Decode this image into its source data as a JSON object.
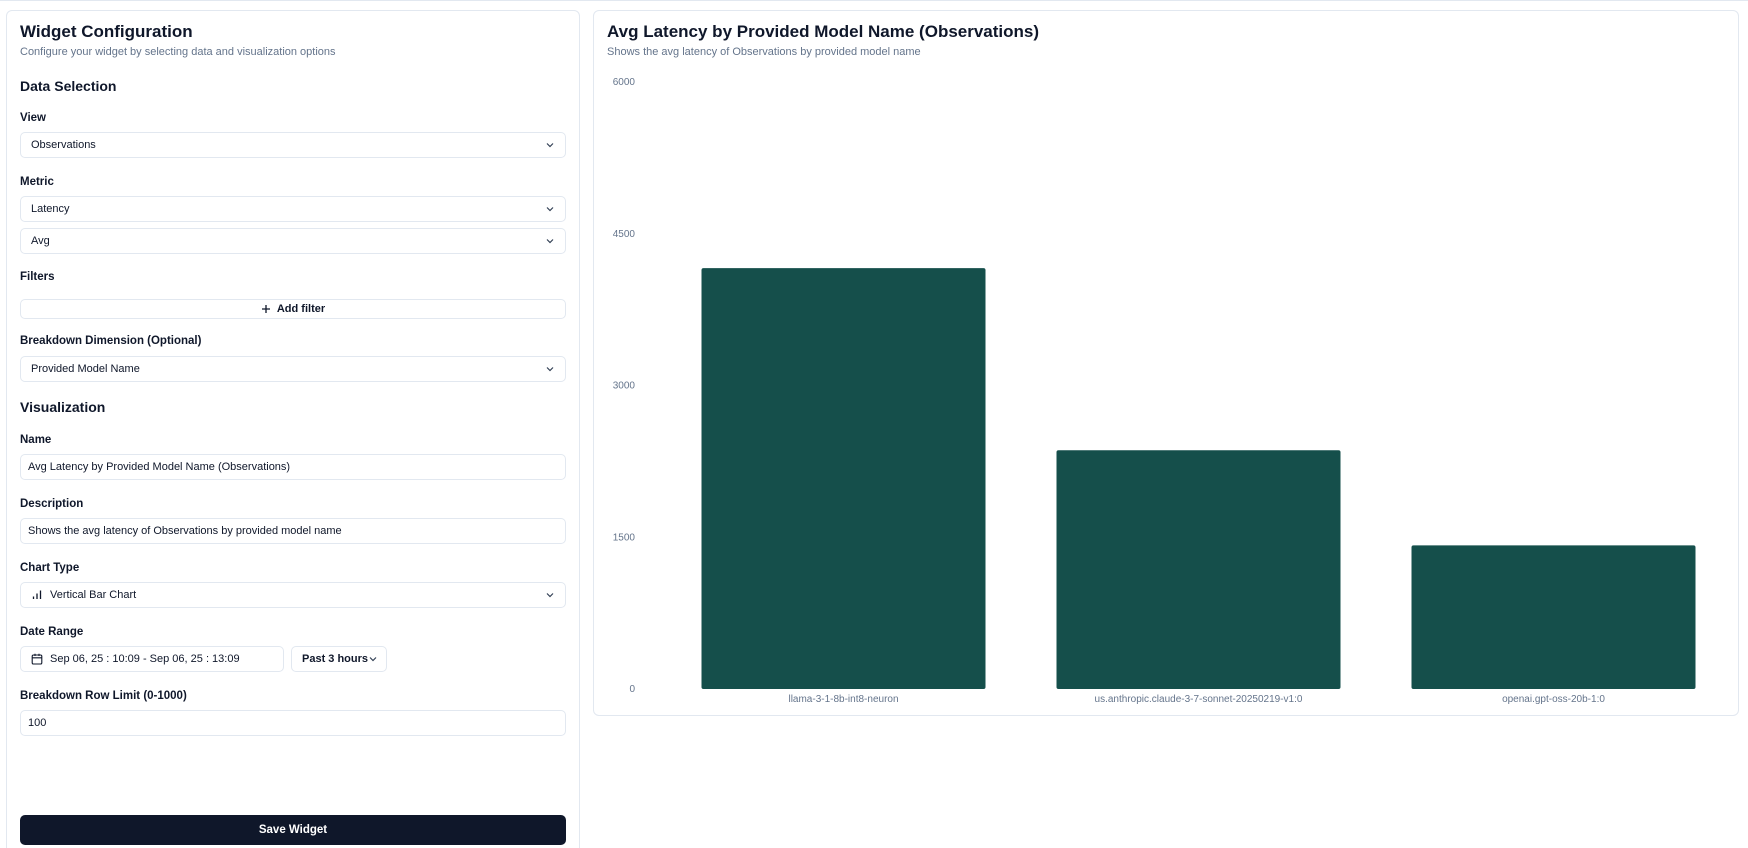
{
  "config": {
    "title": "Widget Configuration",
    "subtitle": "Configure your widget by selecting data and visualization options",
    "data_selection_heading": "Data Selection",
    "view_label": "View",
    "view_value": "Observations",
    "metric_label": "Metric",
    "metric_value": "Latency",
    "aggregation_value": "Avg",
    "filters_label": "Filters",
    "add_filter_label": "Add filter",
    "breakdown_label": "Breakdown Dimension (Optional)",
    "breakdown_value": "Provided Model Name",
    "visualization_heading": "Visualization",
    "name_label": "Name",
    "name_value": "Avg Latency by Provided Model Name (Observations)",
    "description_label": "Description",
    "description_value": "Shows the avg latency of Observations by provided model name",
    "chart_type_label": "Chart Type",
    "chart_type_value": "Vertical Bar Chart",
    "date_range_label": "Date Range",
    "date_range_value": "Sep 06, 25 : 10:09 - Sep 06, 25 : 13:09",
    "date_preset_value": "Past 3 hours",
    "row_limit_label": "Breakdown Row Limit (0-1000)",
    "row_limit_value": "100",
    "save_label": "Save Widget"
  },
  "preview": {
    "title": "Avg Latency by Provided Model Name (Observations)",
    "subtitle": "Shows the avg latency of Observations by provided model name"
  },
  "colors": {
    "bar": "#154f4b",
    "primary_button": "#0f172a",
    "border": "#e2e8f0",
    "muted_text": "#64748b"
  },
  "icons": {
    "select_chevron": "chevron-down-icon",
    "add": "plus-icon",
    "chart_type": "bar-chart-icon",
    "date": "calendar-icon"
  },
  "chart_data": {
    "type": "bar",
    "categories": [
      "llama-3-1-8b-int8-neuron",
      "us.anthropic.claude-3-7-sonnet-20250219-v1:0",
      "openai.gpt-oss-20b-1:0"
    ],
    "values": [
      4160,
      2360,
      1420
    ],
    "yticks": [
      "0",
      "1500",
      "3000",
      "4500",
      "6000"
    ],
    "ylim": [
      0,
      6000
    ],
    "title": "",
    "xlabel": "",
    "ylabel": "",
    "grid": false,
    "legend": "none"
  }
}
